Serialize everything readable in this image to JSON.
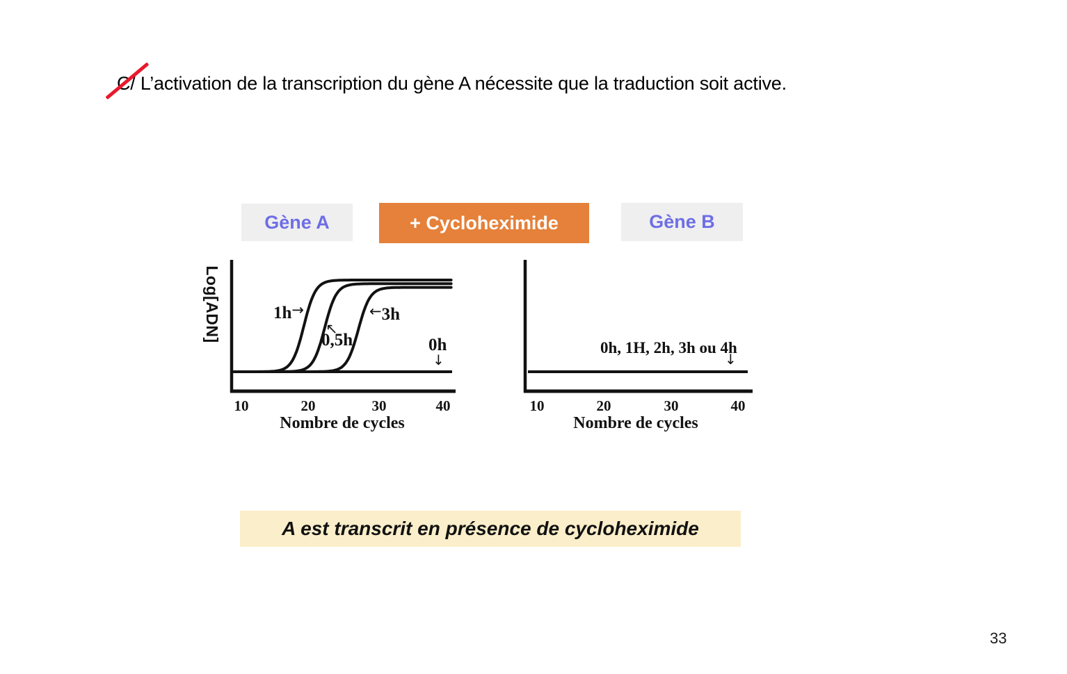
{
  "slide": {
    "title_prefix": "C/",
    "title_rest": " L’activation de la transcription du gène A nécessite que la traduction soit active.",
    "conclusion": "A est transcrit en présence de cycloheximide",
    "page_number": "33"
  },
  "badges": {
    "gene_a": "Gène A",
    "cycloheximide": "+ Cycloheximide",
    "gene_b": "Gène B"
  },
  "colors": {
    "badge_text": "#6e6ee6",
    "badge_bg": "#efefef",
    "cyclo_bg": "#e5813a",
    "cyclo_text": "#ffffff",
    "conclusion_bg": "#fbeeca",
    "strike_red": "#e8192c",
    "ink": "#121212"
  },
  "chart_data": [
    {
      "type": "line",
      "id": "gene-a-qpcr",
      "title": "Gène A + Cycloheximide (qPCR amplification)",
      "ylabel": "Log[ADN]",
      "xlabel": "Nombre de cycles",
      "x_ticks": [
        "10",
        "20",
        "30",
        "40"
      ],
      "x_range": [
        8.5,
        41.5
      ],
      "grid": false,
      "legend": "none",
      "series": [
        {
          "name": "1h",
          "shape": "sigmoid",
          "ct": 19.3,
          "plateau": 1.0
        },
        {
          "name": "0,5h",
          "shape": "sigmoid",
          "ct": 22.4,
          "plateau": 0.96
        },
        {
          "name": "3h",
          "shape": "sigmoid",
          "ct": 27.4,
          "plateau": 0.92
        },
        {
          "name": "0h",
          "shape": "flat",
          "level": 0.0
        }
      ],
      "annotations": [
        {
          "label": "1h",
          "arrow": "→"
        },
        {
          "label": "0,5h",
          "arrow": "↖"
        },
        {
          "label": "3h",
          "arrow": "←"
        },
        {
          "label": "0h",
          "arrow": "↓"
        }
      ]
    },
    {
      "type": "line",
      "id": "gene-b-qpcr",
      "title": "Gène B + Cycloheximide (qPCR amplification)",
      "ylabel": "",
      "xlabel": "Nombre de cycles",
      "x_ticks": [
        "10",
        "20",
        "30",
        "40"
      ],
      "x_range": [
        8.5,
        41.5
      ],
      "grid": false,
      "legend": "none",
      "series": [
        {
          "name": "0h, 1H, 2h, 3h ou 4h",
          "shape": "flat",
          "level": 0.0
        }
      ],
      "annotations": [
        {
          "label": "0h, 1H, 2h, 3h ou 4h",
          "arrow": "↓"
        }
      ]
    }
  ]
}
